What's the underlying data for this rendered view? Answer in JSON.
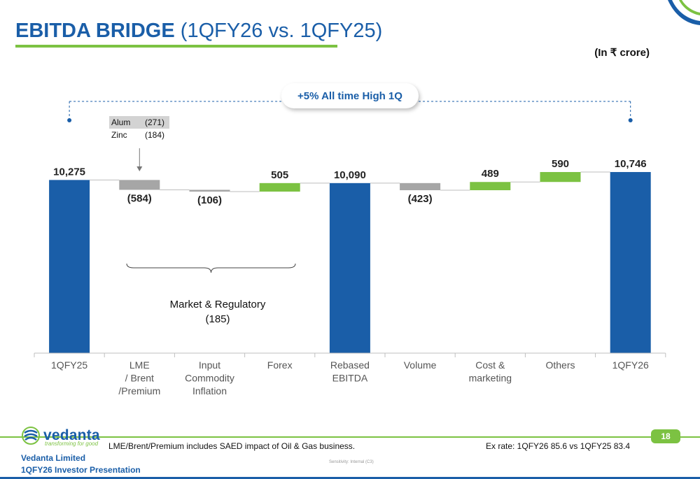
{
  "header": {
    "title_bold": "EBITDA BRIDGE",
    "title_rest": "(1QFY26 vs. 1QFY25)",
    "unit": "(In ₹ crore)"
  },
  "callout": {
    "text": "+5%  All time High 1Q"
  },
  "breakdown": [
    {
      "name": "Alum",
      "value": "(271)"
    },
    {
      "name": "Zinc",
      "value": "(184)"
    }
  ],
  "annotation": {
    "label": "Market & Regulatory",
    "value": "(185)"
  },
  "colors": {
    "blue": "#1a5ea8",
    "grey": "#a6a6a6",
    "green": "#7cc242"
  },
  "chart_data": {
    "type": "bar",
    "subtype": "waterfall",
    "categories": [
      [
        "1QFY25"
      ],
      [
        "LME",
        "/ Brent",
        "/Premium"
      ],
      [
        "Input",
        "Commodity",
        "Inflation"
      ],
      [
        "Forex"
      ],
      [
        "Rebased",
        "EBITDA"
      ],
      [
        "Volume"
      ],
      [
        "Cost &",
        "marketing"
      ],
      [
        "Others"
      ],
      [
        "1QFY26"
      ]
    ],
    "bars": [
      {
        "kind": "total",
        "value": 10275,
        "label": "10,275"
      },
      {
        "kind": "decrease",
        "value": -584,
        "label": "(584)"
      },
      {
        "kind": "decrease",
        "value": -106,
        "label": "(106)"
      },
      {
        "kind": "increase",
        "value": 505,
        "label": "505"
      },
      {
        "kind": "total",
        "value": 10090,
        "label": "10,090"
      },
      {
        "kind": "decrease",
        "value": -423,
        "label": "(423)"
      },
      {
        "kind": "increase",
        "value": 489,
        "label": "489"
      },
      {
        "kind": "increase",
        "value": 590,
        "label": "590"
      },
      {
        "kind": "total",
        "value": 10746,
        "label": "10,746"
      }
    ],
    "ylim": [
      0,
      12000
    ]
  },
  "footer": {
    "logo": "vedanta",
    "tagline": "transforming for good",
    "note": "LME/Brent/Premium includes SAED impact of Oil & Gas business.",
    "exrate": "Ex rate:  1QFY26  85.6 vs 1QFY25 83.4",
    "page": "18",
    "company": "Vedanta Limited",
    "presentation": "1QFY26 Investor Presentation",
    "sensitivity": "Sensitivity: Internal (C3)"
  }
}
